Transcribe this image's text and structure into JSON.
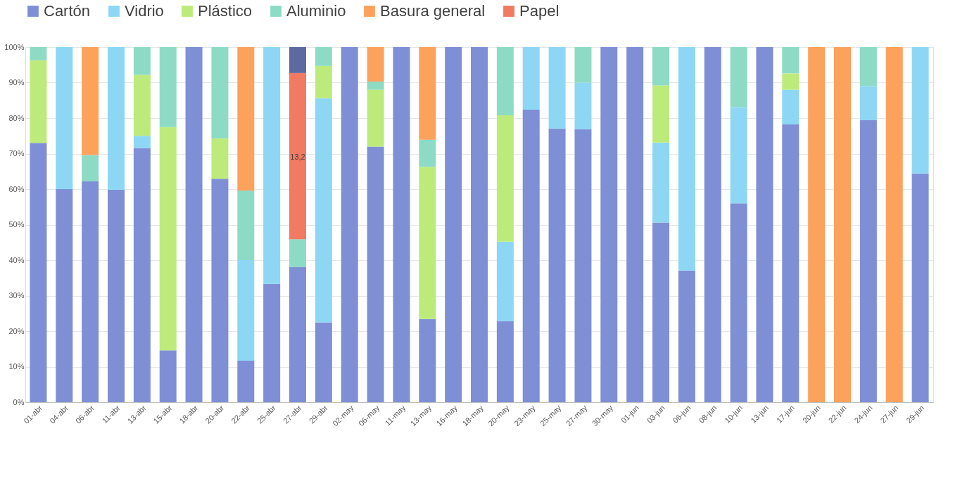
{
  "chart_data": {
    "type": "bar",
    "stacked": true,
    "legend": "top",
    "grid": "y",
    "categories": [
      "01-abr",
      "04-abr",
      "06-abr",
      "11-abr",
      "13-abr",
      "15-abr",
      "18-abr",
      "20-abr",
      "22-abr",
      "25-abr",
      "27-abr",
      "29-abr",
      "02-may",
      "06-may",
      "11-may",
      "13-may",
      "16-may",
      "18-may",
      "20-may",
      "23-may",
      "25-may",
      "27-may",
      "30-may",
      "01-jun",
      "03-jun",
      "06-jun",
      "08-jun",
      "10-jun",
      "13-jun",
      "17-jun",
      "20-jun",
      "22-jun",
      "24-jun",
      "27-jun",
      "29-jun"
    ],
    "series": [
      {
        "name": "Cartón",
        "color": "#7f8fd6",
        "values": [
          73,
          60,
          62.2,
          59.8,
          71.6,
          14.6,
          100,
          62.9,
          11.7,
          33.3,
          38.1,
          22.5,
          100,
          72,
          100,
          23.4,
          100,
          100,
          22.8,
          82.4,
          77.1,
          76.9,
          100,
          100,
          50.6,
          37.1,
          100,
          56,
          100,
          78.2,
          null,
          null,
          79.4,
          null,
          64.4
        ]
      },
      {
        "name": "Vidrio",
        "color": "#8dd7f4",
        "values": [
          null,
          40,
          null,
          40.2,
          3.4,
          null,
          null,
          null,
          28.3,
          66.7,
          null,
          63.1,
          null,
          null,
          null,
          null,
          null,
          null,
          22.4,
          17.6,
          22.9,
          13.1,
          null,
          null,
          22.5,
          62.9,
          null,
          27.1,
          null,
          9.8,
          null,
          null,
          9.6,
          null,
          35.6
        ]
      },
      {
        "name": "Plástico",
        "color": "#bdeb7b",
        "values": [
          23.3,
          null,
          null,
          null,
          17.2,
          62.9,
          null,
          11.4,
          null,
          null,
          null,
          9.1,
          null,
          16,
          null,
          42.9,
          null,
          null,
          35.6,
          null,
          null,
          null,
          null,
          null,
          16.1,
          null,
          null,
          null,
          null,
          4.6,
          null,
          null,
          null,
          null,
          null
        ]
      },
      {
        "name": "Aluminio",
        "color": "#8ddbc5",
        "values": [
          3.7,
          null,
          7.4,
          null,
          7.8,
          22.5,
          null,
          25.7,
          19.6,
          null,
          7.8,
          5.3,
          null,
          2.3,
          null,
          7.6,
          null,
          null,
          19.2,
          null,
          null,
          10,
          null,
          null,
          10.8,
          null,
          null,
          16.9,
          null,
          7.4,
          null,
          null,
          11,
          null,
          null
        ]
      },
      {
        "name": "Basura general",
        "color": "#fca25c",
        "values": [
          null,
          null,
          30.4,
          null,
          null,
          null,
          null,
          null,
          40.4,
          null,
          null,
          null,
          null,
          9.7,
          null,
          26.1,
          null,
          null,
          null,
          null,
          null,
          null,
          null,
          null,
          null,
          null,
          null,
          null,
          null,
          null,
          100,
          100,
          null,
          100,
          null
        ]
      },
      {
        "name": "Papel",
        "color": "#f17a63",
        "values": [
          null,
          null,
          null,
          null,
          null,
          null,
          null,
          null,
          null,
          null,
          46.8,
          null,
          null,
          null,
          null,
          null,
          null,
          null,
          null,
          null,
          null,
          null,
          null,
          null,
          null,
          null,
          null,
          null,
          null,
          null,
          null,
          null,
          null,
          null,
          null
        ]
      },
      {
        "color": "#5d6a9f",
        "values": [
          null,
          null,
          null,
          null,
          null,
          null,
          null,
          null,
          null,
          null,
          7.3,
          null,
          null,
          null,
          null,
          null,
          null,
          null,
          null,
          null,
          null,
          null,
          null,
          null,
          null,
          null,
          null,
          null,
          null,
          null,
          null,
          null,
          null,
          null,
          null
        ]
      }
    ],
    "ylim": [
      0,
      100
    ],
    "yticks": [
      {
        "value": 0,
        "label": "0%"
      },
      {
        "value": 10,
        "label": "10%"
      },
      {
        "value": 20,
        "label": "20%"
      },
      {
        "value": 30,
        "label": "30%"
      },
      {
        "value": 40,
        "label": "40%"
      },
      {
        "value": 50,
        "label": "50%"
      },
      {
        "value": 60,
        "label": "60%"
      },
      {
        "value": 70,
        "label": "70%"
      },
      {
        "value": 80,
        "label": "80%"
      },
      {
        "value": 90,
        "label": "90%"
      },
      {
        "value": 100,
        "label": "100%"
      }
    ],
    "annotations": [
      {
        "text": "13,2",
        "x": "27-abr",
        "y": 69
      }
    ]
  }
}
